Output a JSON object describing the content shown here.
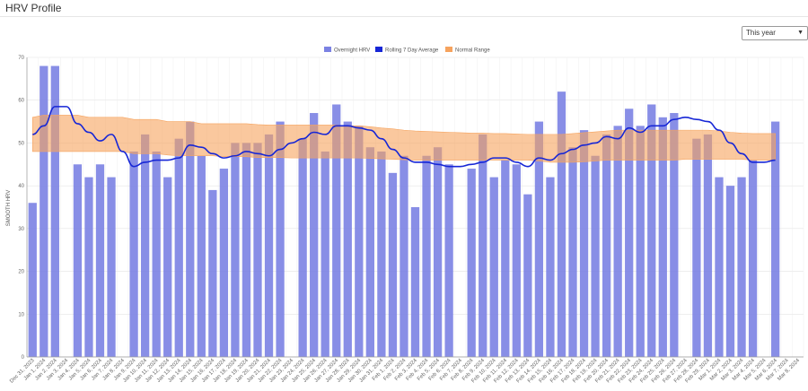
{
  "page": {
    "title": "HRV Profile",
    "range_select": "This year"
  },
  "colors": {
    "bar": "#7b82e3",
    "line": "#1626d6",
    "band": "#f6a35e"
  },
  "chart_data": {
    "type": "bar",
    "ylabel": "SMOOTH HRV",
    "ylim": [
      0,
      70
    ],
    "yticks": [
      0,
      10,
      20,
      30,
      40,
      50,
      60,
      70
    ],
    "legend": [
      "Overnight HRV",
      "Rolling 7 Day Average",
      "Normal Range"
    ],
    "categories": [
      "Dec 31, 2023",
      "Jan 1, 2024",
      "Jan 2, 2024",
      "Jan 3, 2024",
      "Jan 4, 2024",
      "Jan 5, 2024",
      "Jan 6, 2024",
      "Jan 7, 2024",
      "Jan 8, 2024",
      "Jan 9, 2024",
      "Jan 10, 2024",
      "Jan 11, 2024",
      "Jan 12, 2024",
      "Jan 13, 2024",
      "Jan 14, 2024",
      "Jan 15, 2024",
      "Jan 16, 2024",
      "Jan 17, 2024",
      "Jan 18, 2024",
      "Jan 19, 2024",
      "Jan 20, 2024",
      "Jan 21, 2024",
      "Jan 22, 2024",
      "Jan 23, 2024",
      "Jan 24, 2024",
      "Jan 25, 2024",
      "Jan 26, 2024",
      "Jan 27, 2024",
      "Jan 28, 2024",
      "Jan 29, 2024",
      "Jan 30, 2024",
      "Jan 31, 2024",
      "Feb 1, 2024",
      "Feb 2, 2024",
      "Feb 3, 2024",
      "Feb 4, 2024",
      "Feb 5, 2024",
      "Feb 6, 2024",
      "Feb 7, 2024",
      "Feb 8, 2024",
      "Feb 9, 2024",
      "Feb 10, 2024",
      "Feb 11, 2024",
      "Feb 12, 2024",
      "Feb 13, 2024",
      "Feb 14, 2024",
      "Feb 15, 2024",
      "Feb 16, 2024",
      "Feb 17, 2024",
      "Feb 18, 2024",
      "Feb 19, 2024",
      "Feb 20, 2024",
      "Feb 21, 2024",
      "Feb 22, 2024",
      "Feb 23, 2024",
      "Feb 24, 2024",
      "Feb 25, 2024",
      "Feb 26, 2024",
      "Feb 27, 2024",
      "Feb 28, 2024",
      "Feb 29, 2024",
      "Mar 1, 2024",
      "Mar 2, 2024",
      "Mar 3, 2024",
      "Mar 4, 2024",
      "Mar 5, 2024",
      "Mar 6, 2024",
      "Mar 7, 2024",
      "Mar 8, 2024"
    ],
    "series": [
      {
        "name": "Overnight HRV",
        "kind": "bar",
        "values": [
          36,
          68,
          68,
          null,
          45,
          42,
          45,
          42,
          null,
          48,
          52,
          48,
          42,
          51,
          55,
          47,
          39,
          44,
          50,
          50,
          50,
          52,
          55,
          null,
          51,
          57,
          48,
          59,
          55,
          54,
          49,
          48,
          43,
          47,
          35,
          47,
          49,
          45,
          null,
          44,
          52,
          42,
          46,
          45,
          38,
          55,
          42,
          62,
          49,
          53,
          47,
          52,
          54,
          58,
          54,
          59,
          56,
          57,
          null,
          51,
          52,
          42,
          40,
          42,
          46,
          null,
          55,
          null,
          null
        ]
      },
      {
        "name": "Rolling 7 Day Average",
        "kind": "line",
        "values": [
          52,
          54,
          58.5,
          58.5,
          54.5,
          52.5,
          50.5,
          52,
          48,
          44.5,
          45.5,
          46,
          46,
          46.5,
          49.5,
          49,
          47.5,
          46.5,
          47,
          48,
          47.5,
          47,
          48.5,
          50,
          51,
          52.5,
          52,
          54,
          54,
          53.5,
          53,
          51,
          48.5,
          46.5,
          45.5,
          45.5,
          45,
          44.5,
          44.5,
          45,
          45.5,
          46.5,
          46.5,
          45.5,
          44.5,
          46.5,
          46,
          47.5,
          48.5,
          49.5,
          50,
          51.5,
          51,
          53.5,
          52.5,
          54,
          54,
          55.5,
          56,
          55.5,
          55,
          53,
          50,
          47.5,
          45.5,
          45.5,
          46,
          null,
          null
        ]
      },
      {
        "name": "Normal Range",
        "kind": "band",
        "lower": [
          48,
          48,
          48,
          48,
          48,
          48,
          48,
          48,
          48,
          47.5,
          47.5,
          47.5,
          47.2,
          47,
          47,
          47,
          47,
          46.8,
          46.8,
          46.8,
          46.6,
          46.6,
          46.6,
          46.5,
          46.5,
          46.5,
          46.5,
          46.5,
          46.5,
          46.5,
          46.4,
          46.3,
          46.2,
          46.1,
          46,
          46,
          46,
          46,
          46,
          46,
          46,
          46,
          46,
          46,
          46,
          45.8,
          45.5,
          45.5,
          45.5,
          45.6,
          45.8,
          46,
          46,
          46,
          46,
          46,
          46,
          46,
          46.2,
          46.2,
          46.2,
          46.2,
          46.2,
          46.2,
          46,
          46,
          46,
          null,
          null
        ],
        "upper": [
          56,
          56.5,
          56.5,
          56.5,
          56.5,
          56,
          56,
          56,
          56,
          55.5,
          55.5,
          55.5,
          55,
          55,
          55,
          54.5,
          54.5,
          54.5,
          54.5,
          54.5,
          54.3,
          54.2,
          54.2,
          54.2,
          54.2,
          54.2,
          54.2,
          54.2,
          54,
          54,
          53.8,
          53.5,
          53.3,
          53,
          52.8,
          52.7,
          52.6,
          52.5,
          52.4,
          52.3,
          52.3,
          52.2,
          52.2,
          52.1,
          52,
          52,
          52,
          52,
          52.2,
          52.4,
          52.6,
          52.8,
          53,
          53,
          53,
          53,
          53,
          53,
          53,
          53,
          53,
          52.8,
          52.5,
          52.3,
          52.2,
          52.2,
          52.2,
          null,
          null
        ]
      }
    ]
  }
}
